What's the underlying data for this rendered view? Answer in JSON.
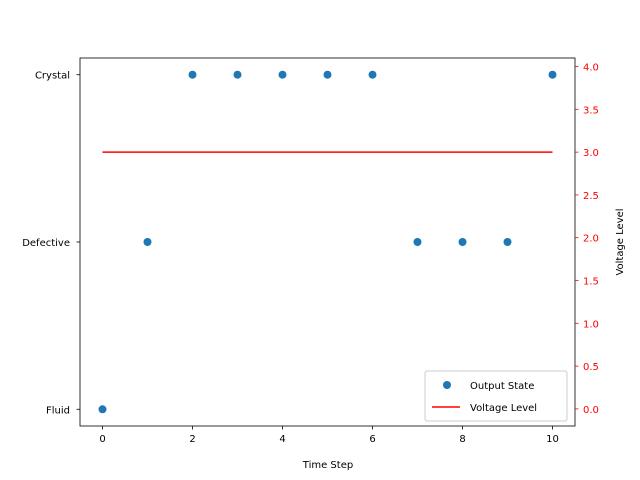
{
  "chart_data": {
    "type": "scatter",
    "xlabel": "Time Step",
    "ylabel_right": "Voltage Level",
    "x_ticks": [
      "0",
      "2",
      "4",
      "6",
      "8",
      "10"
    ],
    "xlim": [
      -0.5,
      10.5
    ],
    "left_axis": {
      "categories": [
        "Fluid",
        "Defective",
        "Crystal"
      ],
      "ylim": [
        -0.1,
        2.1
      ]
    },
    "right_axis": {
      "ticks": [
        "0.0",
        "0.5",
        "1.0",
        "1.5",
        "2.0",
        "2.5",
        "3.0",
        "3.5",
        "4.0"
      ],
      "ylim": [
        -0.2,
        4.1
      ],
      "color": "#ff0000"
    },
    "series": [
      {
        "name": "Output State",
        "kind": "scatter",
        "axis": "left",
        "color": "#1f77b4",
        "x": [
          0,
          1,
          2,
          3,
          4,
          5,
          6,
          7,
          8,
          9,
          10
        ],
        "y": [
          "Fluid",
          "Defective",
          "Crystal",
          "Crystal",
          "Crystal",
          "Crystal",
          "Crystal",
          "Defective",
          "Defective",
          "Defective",
          "Crystal"
        ]
      },
      {
        "name": "Voltage Level",
        "kind": "line",
        "axis": "right",
        "color": "#ff0000",
        "x": [
          0,
          10
        ],
        "y": [
          3.0,
          3.0
        ]
      }
    ],
    "legend": {
      "position": "lower-right",
      "labels": [
        "Output State",
        "Voltage Level"
      ]
    },
    "grid": false
  }
}
